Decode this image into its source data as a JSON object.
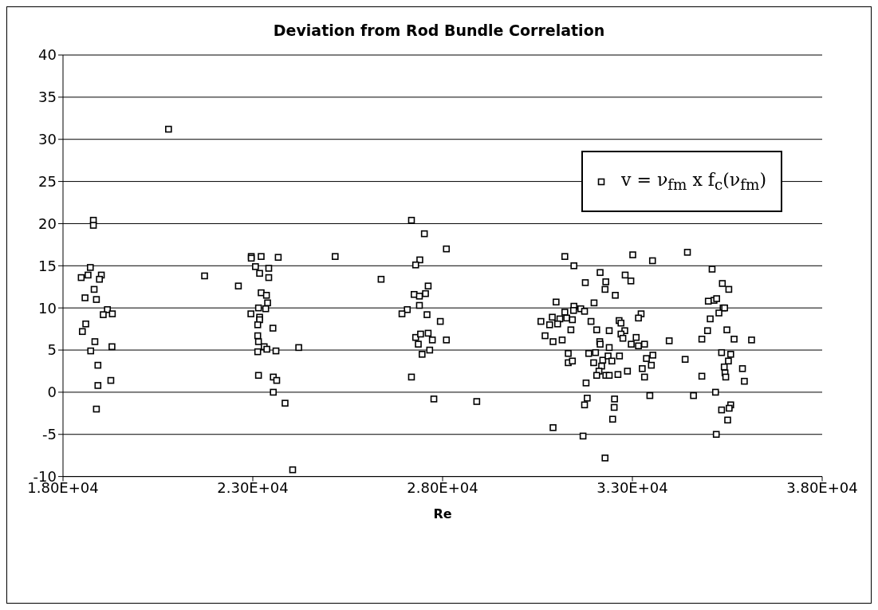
{
  "chart_data": {
    "type": "scatter",
    "title": "Deviation from Rod Bundle Correlation",
    "xlabel": "Re",
    "xlim": [
      18000,
      38000
    ],
    "xticks": [
      {
        "value": 18000,
        "label": "1.80E+04"
      },
      {
        "value": 23000,
        "label": "2.30E+04"
      },
      {
        "value": 28000,
        "label": "2.80E+04"
      },
      {
        "value": 33000,
        "label": "3.30E+04"
      },
      {
        "value": 38000,
        "label": "3.80E+04"
      }
    ],
    "ylim": [
      -10,
      40
    ],
    "yticks": [
      -10,
      -5,
      0,
      5,
      10,
      15,
      20,
      25,
      30,
      35,
      40
    ],
    "grid": "y",
    "legend": "top right",
    "marker": "square",
    "series": [
      {
        "name": "v = ν$_{fm}$ x f$_{c}$(ν$_{fm}$)",
        "color": "#000000",
        "x": [
          20780,
          18800,
          18800,
          18720,
          18480,
          18660,
          19010,
          18960,
          18820,
          18580,
          18880,
          19170,
          19060,
          19300,
          18600,
          18510,
          18840,
          18730,
          19290,
          18920,
          18920,
          19260,
          18880,
          21730,
          22620,
          22960,
          22960,
          23220,
          23670,
          23070,
          23420,
          23180,
          23420,
          23220,
          23360,
          23390,
          23340,
          23150,
          22950,
          23180,
          23180,
          23130,
          23530,
          23130,
          23150,
          23300,
          23370,
          23130,
          23610,
          24210,
          23150,
          23540,
          23630,
          23540,
          23850,
          24050,
          25170,
          26380,
          27180,
          27520,
          28100,
          27400,
          27290,
          27620,
          27250,
          27390,
          27550,
          27390,
          27070,
          26930,
          27590,
          27940,
          27290,
          27420,
          27620,
          27730,
          28100,
          27360,
          27460,
          27660,
          27180,
          27770,
          28900,
          31220,
          31460,
          33010,
          33530,
          34450,
          32150,
          32810,
          32960,
          31760,
          32300,
          32280,
          32550,
          30990,
          31990,
          31460,
          31640,
          31740,
          31450,
          31220,
          33230,
          33160,
          30890,
          31090,
          31270,
          31420,
          30590,
          30820,
          31030,
          31910,
          32650,
          32700,
          31380,
          32060,
          32390,
          32800,
          32700,
          32750,
          30700,
          30910,
          31150,
          33100,
          32970,
          33160,
          33320,
          33970,
          32140,
          32150,
          32390,
          31310,
          31850,
          32030,
          31310,
          31420,
          31980,
          32220,
          32360,
          32460,
          32660,
          33540,
          33370,
          33500,
          32190,
          32120,
          32060,
          32300,
          32390,
          32620,
          32870,
          33260,
          33320,
          34390,
          31780,
          31810,
          31740,
          32530,
          32520,
          33460,
          32480,
          30910,
          31700,
          32280,
          35100,
          35370,
          35540,
          35000,
          35150,
          35220,
          35390,
          35430,
          35280,
          35050,
          34980,
          35490,
          34830,
          35680,
          36140,
          35350,
          35590,
          35530,
          35420,
          35440,
          35460,
          35900,
          35950,
          34830,
          35190,
          34610,
          35590,
          35550,
          35350,
          35510,
          35210
        ],
        "values": [
          31.2,
          20.4,
          19.8,
          14.8,
          13.6,
          13.9,
          13.9,
          13.4,
          12.2,
          11.2,
          11,
          9.8,
          9.2,
          9.3,
          8.1,
          7.2,
          6,
          4.9,
          5.4,
          3.2,
          0.8,
          1.4,
          -2,
          13.8,
          12.6,
          16.1,
          15.9,
          16.1,
          16,
          14.9,
          14.7,
          14.1,
          13.6,
          11.8,
          11.5,
          10.6,
          9.9,
          10,
          9.3,
          8.9,
          8.6,
          8,
          7.6,
          6.7,
          6,
          5.4,
          5.1,
          4.8,
          4.9,
          5.3,
          2,
          1.8,
          1.4,
          0,
          -1.3,
          -9.2,
          16.1,
          13.4,
          20.4,
          18.8,
          17,
          15.7,
          15.1,
          12.6,
          11.6,
          11.4,
          11.7,
          10.3,
          9.8,
          9.3,
          9.2,
          8.4,
          6.5,
          6.9,
          7,
          6.2,
          6.2,
          5.7,
          4.5,
          5,
          1.8,
          -0.8,
          -1.1,
          16.1,
          15,
          16.3,
          15.6,
          16.6,
          14.2,
          13.9,
          13.2,
          13,
          13.1,
          12.2,
          11.5,
          10.7,
          10.6,
          10.2,
          9.9,
          9.6,
          9.7,
          9.5,
          9.3,
          8.8,
          8.9,
          8.7,
          8.8,
          8.6,
          8.4,
          8,
          8.1,
          8.4,
          8.5,
          8.2,
          7.4,
          7.4,
          7.3,
          7.3,
          6.9,
          6.4,
          6.7,
          6,
          6.2,
          6.5,
          5.7,
          5.5,
          5.7,
          6.1,
          6,
          5.7,
          5.3,
          4.6,
          4.6,
          4.7,
          3.5,
          3.7,
          3.5,
          3.8,
          4.3,
          3.7,
          4.3,
          4.4,
          4,
          3.2,
          3.1,
          2.5,
          2,
          2,
          2,
          2.1,
          2.5,
          2.8,
          1.8,
          3.9,
          1.1,
          -0.7,
          -1.5,
          -0.8,
          -1.8,
          -0.4,
          -3.2,
          -4.2,
          -5.2,
          -7.8,
          14.6,
          12.9,
          12.2,
          10.8,
          10.9,
          11.1,
          10,
          10,
          9.4,
          8.7,
          7.3,
          7.4,
          6.3,
          6.3,
          6.2,
          4.7,
          4.5,
          3.7,
          3,
          2.3,
          1.8,
          2.8,
          1.3,
          1.9,
          0,
          -0.4,
          -1.5,
          -1.9,
          -2.1,
          -3.3,
          -5
        ]
      }
    ]
  }
}
